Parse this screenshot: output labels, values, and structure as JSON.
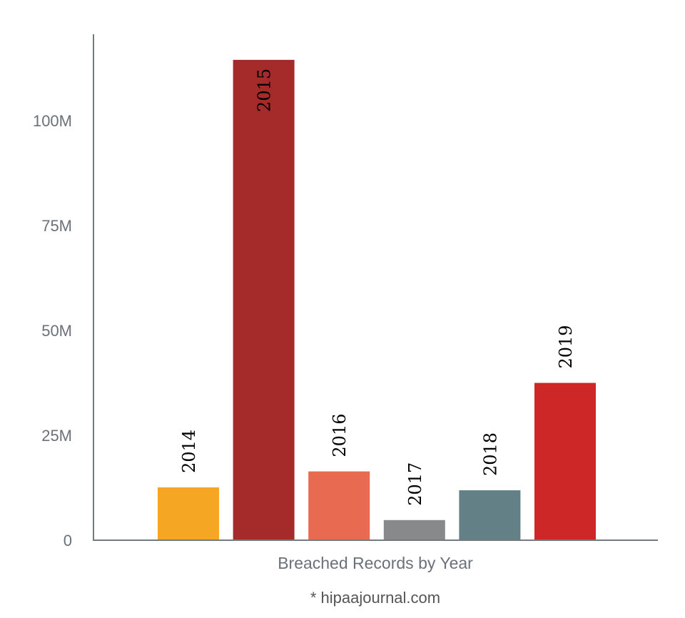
{
  "chart_data": {
    "type": "bar",
    "categories": [
      "2014",
      "2015",
      "2016",
      "2017",
      "2018",
      "2019"
    ],
    "values": [
      12.6,
      114.5,
      16.4,
      4.8,
      11.9,
      37.5
    ],
    "unit": "M",
    "colors": [
      "#f5a623",
      "#a52a2a",
      "#e86a50",
      "#88898b",
      "#628086",
      "#cd2727"
    ],
    "title": "",
    "xlabel": "Breached Records by Year",
    "ylabel": "",
    "ylim": [
      0,
      120.6
    ],
    "yticks": [
      0,
      25,
      50,
      75,
      100
    ],
    "ytick_labels": [
      "0",
      "25M",
      "50M",
      "75M",
      "100M"
    ],
    "grid": false,
    "legend": "none",
    "source_note": "* hipaajournal.com"
  }
}
